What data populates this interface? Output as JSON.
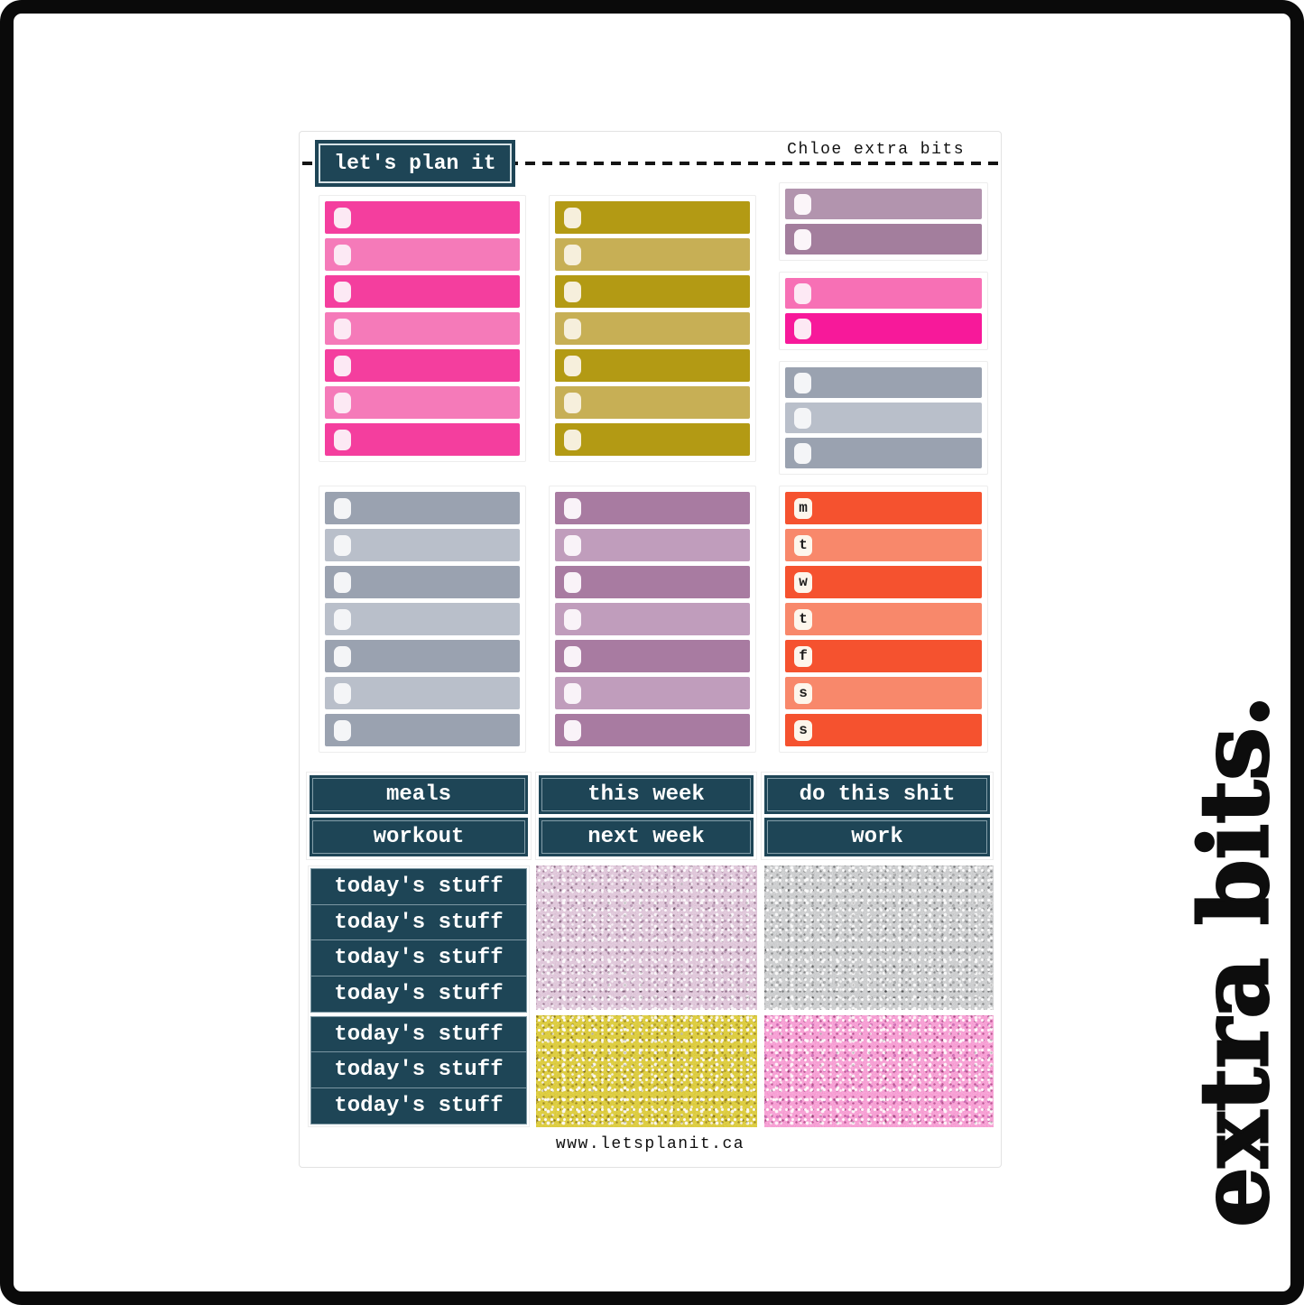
{
  "page": {
    "brand_logo": "let's plan it",
    "sheet_name": "Chloe extra bits",
    "website": "www.letsplanit.ca",
    "side_text": "extra bits."
  },
  "day_letters": [
    "m",
    "t",
    "w",
    "t",
    "f",
    "s",
    "s"
  ],
  "label_boxes": [
    {
      "top": "meals",
      "bottom": "workout"
    },
    {
      "top": "this week",
      "bottom": "next week"
    },
    {
      "top": "do this shit",
      "bottom": "work"
    }
  ],
  "todays_stuff": {
    "labels": [
      "today's stuff",
      "today's stuff",
      "today's stuff",
      "today's stuff",
      "today's stuff",
      "today's stuff",
      "today's stuff"
    ]
  },
  "bar_sections": {
    "top": [
      {
        "groups": [
          {
            "count": 7,
            "palette": "pink",
            "start": "dark"
          }
        ]
      },
      {
        "groups": [
          {
            "count": 7,
            "palette": "olive",
            "start": "dark"
          }
        ]
      },
      {
        "groups": [
          {
            "count": 2,
            "palette": "mauve",
            "start": "light"
          },
          {
            "count": 2,
            "palette": "vividpink",
            "start": "light"
          },
          {
            "count": 3,
            "palette": "gray",
            "start": "dark"
          }
        ]
      }
    ],
    "bottom": [
      {
        "groups": [
          {
            "count": 7,
            "palette": "gray",
            "start": "dark"
          }
        ]
      },
      {
        "groups": [
          {
            "count": 7,
            "palette": "mauve2",
            "start": "dark"
          }
        ]
      },
      {
        "groups": [
          {
            "count": 7,
            "palette": "orange",
            "start": "dark",
            "letters": true
          }
        ]
      }
    ]
  },
  "glitter_swatches": [
    {
      "name": "lilac-glitter",
      "color_key": "glitter_lilac"
    },
    {
      "name": "silver-glitter",
      "color_key": "glitter_silver"
    },
    {
      "name": "gold-glitter",
      "color_key": "glitter_gold"
    },
    {
      "name": "pink-glitter",
      "color_key": "glitter_pink"
    }
  ],
  "colors": {
    "teal": "#1e4556",
    "ink": "#121212",
    "sheet_border": "#e2e2e2",
    "pad_border": "#ededed",
    "pink_dark": "#f43e9e",
    "pink_light": "#f57ab9",
    "pink_check": "#fce9f4",
    "olive_dark": "#b39a14",
    "olive_light": "#c7af55",
    "olive_check": "#f6efdc",
    "mauve_light": "#b294ae",
    "mauve_dark": "#a37e9d",
    "mauve_check": "#fbf5f9",
    "vividpink_light": "#f770b5",
    "vividpink_dark": "#f7199a",
    "vividpink_check": "#fde9f4",
    "gray_dark": "#9aa2b0",
    "gray_light": "#b9bfca",
    "gray_check": "#f4f5f7",
    "mauve2_dark": "#a87ba1",
    "mauve2_light": "#c09dbc",
    "mauve2_check": "#f9f3f8",
    "orange_dark": "#f5522f",
    "orange_light": "#f8886b",
    "orange_check": "#fdf6ec",
    "glitter_lilac": "#c89dbe",
    "glitter_silver": "#a7a9ab",
    "glitter_gold": "#c3a62e",
    "glitter_pink": "#f170b4"
  }
}
